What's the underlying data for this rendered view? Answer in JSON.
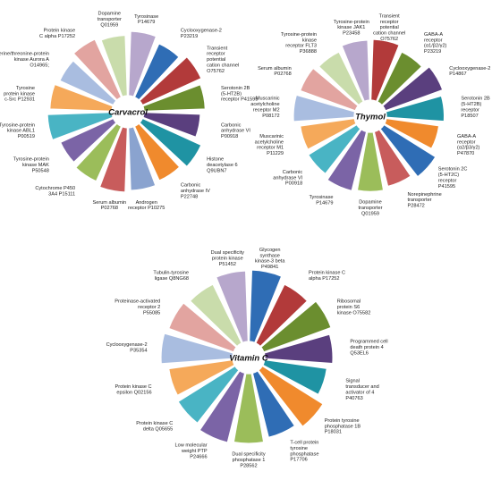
{
  "chart_data": [
    {
      "type": "pie",
      "title": "Carvacrol",
      "categories": [
        "Tyrosinase P14679",
        "Cyclooxygenase-2 P23219",
        "Transient receptor potential cation channel O75762",
        "Serotonin 2B (5-HT2B) receptor P41595",
        "Carbonic anhydrase VI P00918",
        "Histone deacetylase 6 Q9UBN7",
        "Carbonic anhydrase IV P22748",
        "Androgen receptor P10275",
        "Serum albumin P02768",
        "Cytochrome P450 3A4 P15111",
        "Tyrosine-protein kinase MAK P50548",
        "Tyrosine-protein kinase ABL1 P00519",
        "Tyrosine protein kinase c-Src P12931",
        "Serine/threonine-protein kinase Aurora A O14965;",
        "Protein kinase C alpha P17252",
        "Dopamine transporter Q01959"
      ],
      "colors": [
        "#b7a7cc",
        "#2f6db5",
        "#b23a3a",
        "#6b8e2f",
        "#5a3f7e",
        "#1f93a3",
        "#f08a2d",
        "#8aa3cf",
        "#c85c5c",
        "#9bbd5a",
        "#7b64a6",
        "#49b4c4",
        "#f5a95a",
        "#a9bde0",
        "#e2a4a0",
        "#c9dcab"
      ]
    },
    {
      "type": "pie",
      "title": "Thymol",
      "categories": [
        "Transient receptor potential cation channel O75762",
        "GABA-A receptor (α1/β2/γ2) P23219",
        "Cyclooxygenase-2 P14867",
        "Serotonin 2B (5-HT2B) receptor P18507",
        "GABA-A receptor (α2/β3/γ2) P47870",
        "Serotonin 2C (5-HT2C) receptor P41595",
        "Norepinephrine transporter P28472",
        "Dopamine transporter Q01959",
        "Tyrosinase P14679",
        "Carbonic anhydrase VI P00918",
        "Muscarinic acetylcholine receptor M1 P11229",
        "Muscarinic acetylcholine receptor M2 P08172",
        "Serum albumin P02768",
        "Tyrosine-protein kinase receptor FLT3 P36888",
        "Tyrosine-protein kinase JAK1 P23458"
      ],
      "colors": [
        "#b23a3a",
        "#6b8e2f",
        "#5a3f7e",
        "#1f93a3",
        "#f08a2d",
        "#2f6db5",
        "#c85c5c",
        "#9bbd5a",
        "#7b64a6",
        "#49b4c4",
        "#f5a95a",
        "#a9bde0",
        "#e2a4a0",
        "#c9dcab",
        "#b7a7cc"
      ]
    },
    {
      "type": "pie",
      "title": "Vitamin C",
      "categories": [
        "Glycogen synthase kinase-3 beta P49841",
        "Protein kinase C alpha P17252",
        "Ribosomal protein S6 kinase O75582",
        "Programmed cell death protein 4 Q53EL6",
        "Signal transducer and activator of 4 P40763",
        "Protein tyrosine phosphatase 1B P18031",
        "T-cell protein tyrosine phosphatase P17706",
        "Dual specificity phosphatase 1 P28562",
        "Low molecular weight PTP P24666",
        "Protein kinase C delta Q05655",
        "Protein kinase C epsilon Q02156",
        "Cyclooxygenase-2 P35354",
        "Proteinase-activated receptor 2 P55085",
        "Tubulin-tyrosine ligase Q8NG68",
        "Dual specificity protein kinase P51452"
      ],
      "colors": [
        "#2f6db5",
        "#b23a3a",
        "#6b8e2f",
        "#5a3f7e",
        "#1f93a3",
        "#f08a2d",
        "#2f6db5",
        "#9bbd5a",
        "#7b64a6",
        "#49b4c4",
        "#f5a95a",
        "#a9bde0",
        "#e2a4a0",
        "#c9dcab",
        "#b7a7cc"
      ]
    }
  ]
}
